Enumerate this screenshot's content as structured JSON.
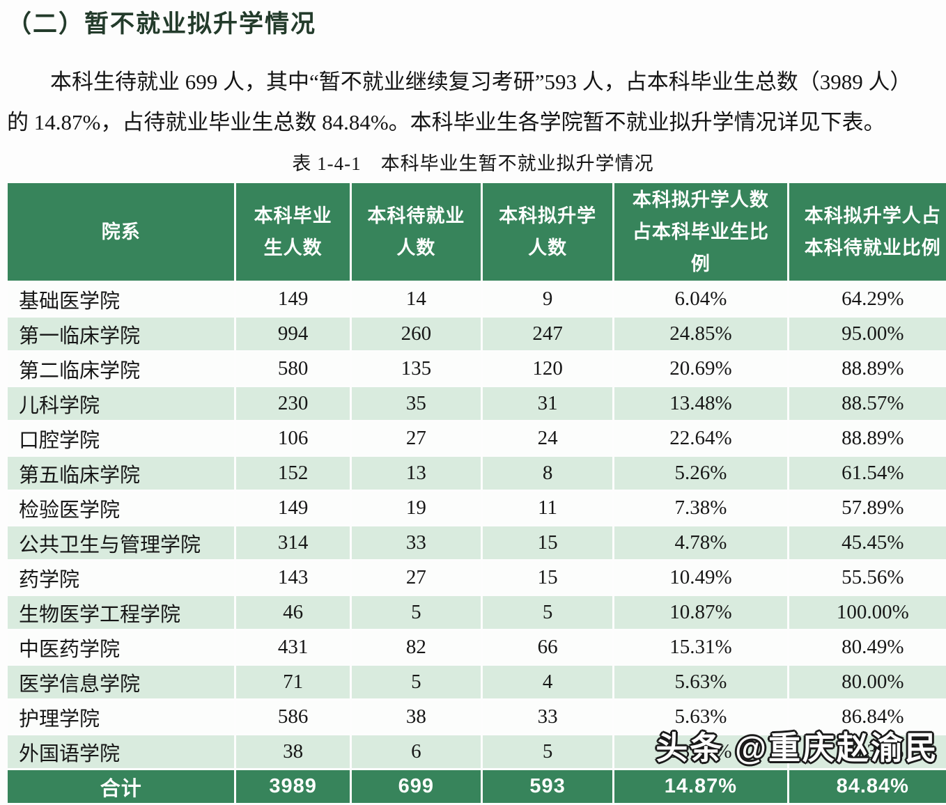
{
  "page": {
    "heading": "（二）暂不就业拟升学情况",
    "paragraph_line1": "本科生待就业 699 人，其中“暂不就业继续复习考研”593 人，占本科毕业生总数（3989 人）",
    "paragraph_line2": "的 14.87%，占待就业毕业生总数 84.84%。本科毕业生各学院暂不就业拟升学情况详见下表。",
    "caption": "表 1-4-1　本科毕业生暂不就业拟升学情况",
    "watermark": "头条 @重庆赵渝民"
  },
  "colors": {
    "header_green": "#37845B",
    "total_green": "#37845B",
    "row_alt_green": "#D9EBDE",
    "row_white": "#FCFDFC",
    "heading_text": "#233B2B"
  },
  "chart_data": {
    "type": "table",
    "title": "表 1-4-1 本科毕业生暂不就业拟升学情况",
    "headers": [
      "院系",
      "本科毕业生人数",
      "本科待就业人数",
      "本科拟升学人数",
      "本科拟升学人数占本科毕业生比例",
      "本科拟升学人占本科待就业比例"
    ],
    "header_display": [
      "院系",
      "本科毕业\n生人数",
      "本科待就业\n人数",
      "本科拟升学\n人数",
      "本科拟升学人数\n占本科毕业生比\n例",
      "本科拟升学人占\n本科待就业比例"
    ],
    "rows": [
      [
        "基础医学院",
        "149",
        "14",
        "9",
        "6.04%",
        "64.29%"
      ],
      [
        "第一临床学院",
        "994",
        "260",
        "247",
        "24.85%",
        "95.00%"
      ],
      [
        "第二临床学院",
        "580",
        "135",
        "120",
        "20.69%",
        "88.89%"
      ],
      [
        "儿科学院",
        "230",
        "35",
        "31",
        "13.48%",
        "88.57%"
      ],
      [
        "口腔学院",
        "106",
        "27",
        "24",
        "22.64%",
        "88.89%"
      ],
      [
        "第五临床学院",
        "152",
        "13",
        "8",
        "5.26%",
        "61.54%"
      ],
      [
        "检验医学院",
        "149",
        "19",
        "11",
        "7.38%",
        "57.89%"
      ],
      [
        "公共卫生与管理学院",
        "314",
        "33",
        "15",
        "4.78%",
        "45.45%"
      ],
      [
        "药学院",
        "143",
        "27",
        "15",
        "10.49%",
        "55.56%"
      ],
      [
        "生物医学工程学院",
        "46",
        "5",
        "5",
        "10.87%",
        "100.00%"
      ],
      [
        "中医药学院",
        "431",
        "82",
        "66",
        "15.31%",
        "80.49%"
      ],
      [
        "医学信息学院",
        "71",
        "5",
        "4",
        "5.63%",
        "80.00%"
      ],
      [
        "护理学院",
        "586",
        "38",
        "33",
        "5.63%",
        "86.84%"
      ],
      [
        "外国语学院",
        "38",
        "6",
        "5",
        "13.16%",
        "83.33%"
      ]
    ],
    "total": [
      "合计",
      "3989",
      "699",
      "593",
      "14.87%",
      "84.84%"
    ]
  }
}
